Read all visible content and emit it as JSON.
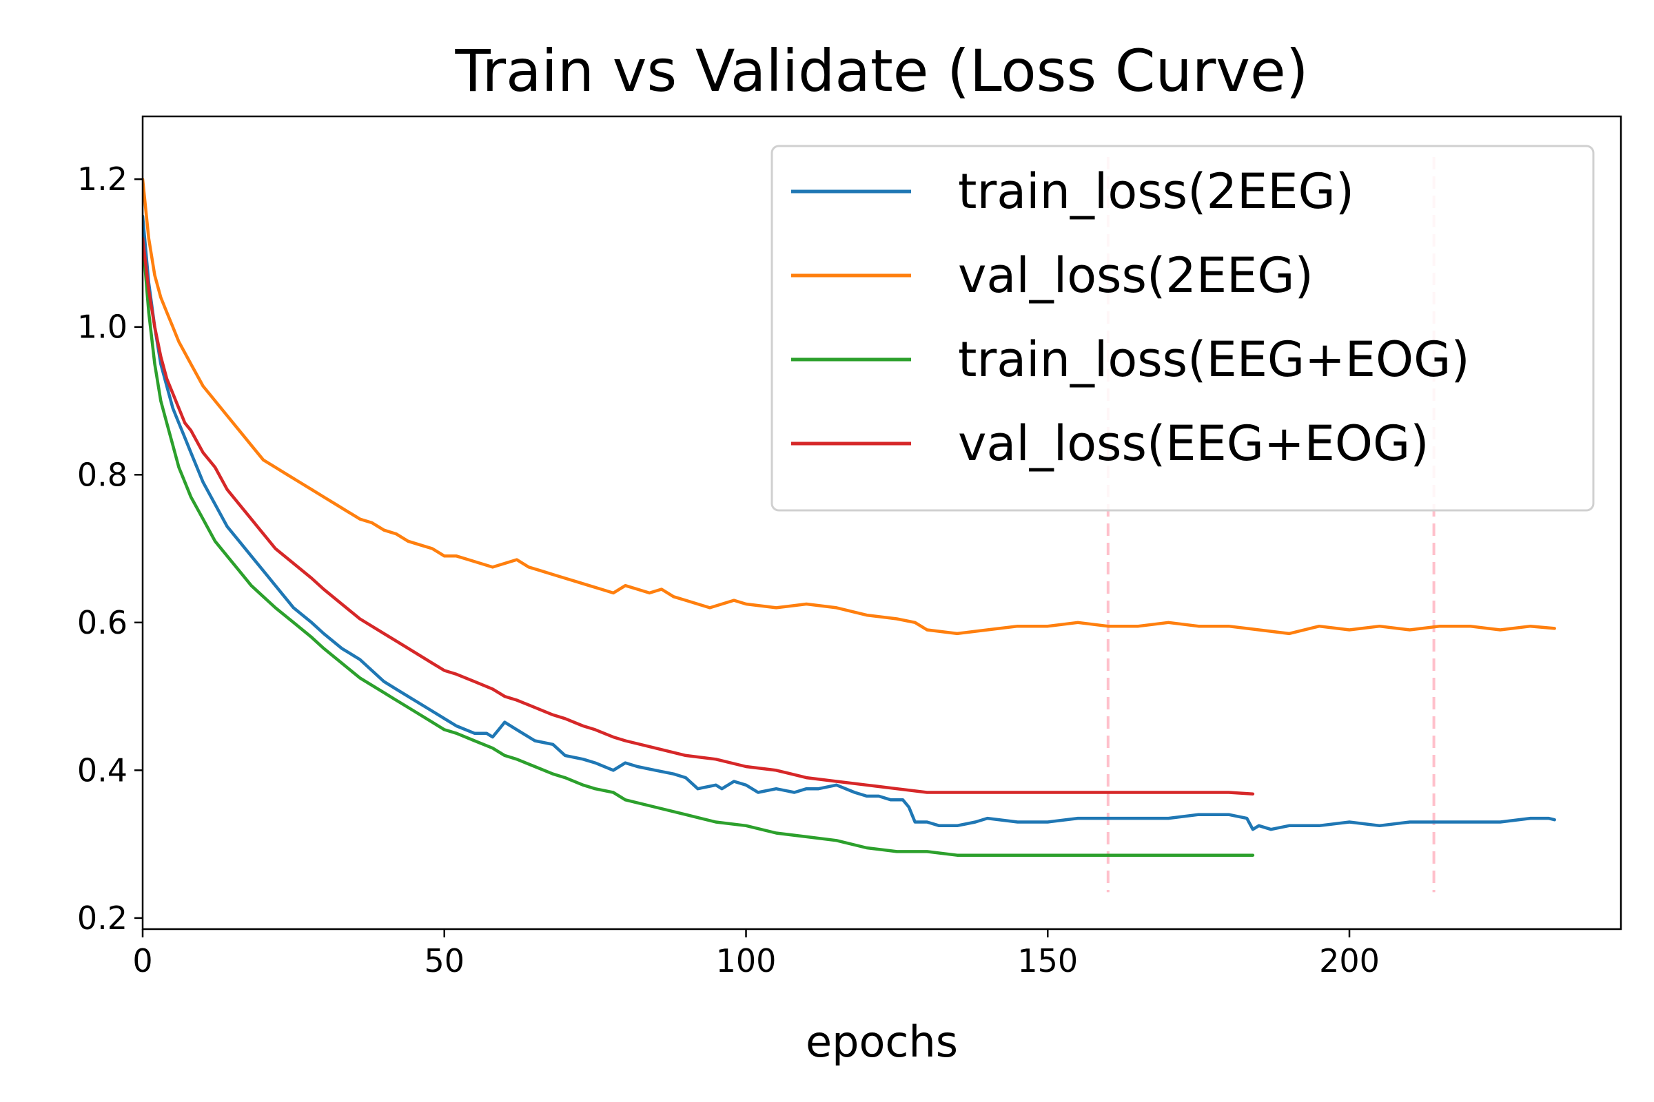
{
  "chart_data": {
    "type": "line",
    "title": "Train vs Validate (Loss Curve)",
    "xlabel": "epochs",
    "ylabel": "",
    "xlim": [
      0,
      245
    ],
    "ylim": [
      0.185,
      1.285
    ],
    "xticks": [
      0,
      50,
      100,
      150,
      200
    ],
    "yticks": [
      0.2,
      0.4,
      0.6,
      0.8,
      1.0,
      1.2
    ],
    "xtick_labels": [
      "0",
      "50",
      "100",
      "150",
      "200"
    ],
    "ytick_labels": [
      "0.2",
      "0.4",
      "0.6",
      "0.8",
      "1.0",
      "1.2"
    ],
    "grid": false,
    "legend_position": "top-right",
    "vlines": [
      {
        "x": 160,
        "color": "#ffc0cb",
        "style": "dashed"
      },
      {
        "x": 214,
        "color": "#ffc0cb",
        "style": "dashed"
      }
    ],
    "series": [
      {
        "name": "train_loss(2EEG)",
        "color": "#1f77b4",
        "x": [
          0,
          1,
          2,
          3,
          4,
          5,
          6,
          7,
          8,
          9,
          10,
          12,
          14,
          16,
          18,
          20,
          22,
          25,
          28,
          30,
          33,
          36,
          40,
          42,
          45,
          48,
          50,
          52,
          55,
          57,
          58,
          59,
          60,
          62,
          65,
          68,
          70,
          73,
          75,
          78,
          80,
          82,
          85,
          88,
          90,
          92,
          95,
          96,
          98,
          100,
          102,
          105,
          108,
          110,
          112,
          115,
          118,
          120,
          122,
          124,
          126,
          127,
          128,
          130,
          132,
          135,
          138,
          140,
          145,
          150,
          155,
          160,
          165,
          170,
          175,
          180,
          183,
          184,
          185,
          187,
          190,
          195,
          200,
          205,
          210,
          215,
          220,
          225,
          230,
          233,
          234
        ],
        "values": [
          1.15,
          1.06,
          1.0,
          0.95,
          0.92,
          0.89,
          0.87,
          0.85,
          0.83,
          0.81,
          0.79,
          0.76,
          0.73,
          0.71,
          0.69,
          0.67,
          0.65,
          0.62,
          0.6,
          0.585,
          0.565,
          0.55,
          0.52,
          0.51,
          0.495,
          0.48,
          0.47,
          0.46,
          0.45,
          0.45,
          0.445,
          0.455,
          0.465,
          0.455,
          0.44,
          0.435,
          0.42,
          0.415,
          0.41,
          0.4,
          0.41,
          0.405,
          0.4,
          0.395,
          0.39,
          0.375,
          0.38,
          0.375,
          0.385,
          0.38,
          0.37,
          0.375,
          0.37,
          0.375,
          0.375,
          0.38,
          0.37,
          0.365,
          0.365,
          0.36,
          0.36,
          0.35,
          0.33,
          0.33,
          0.325,
          0.325,
          0.33,
          0.335,
          0.33,
          0.33,
          0.335,
          0.335,
          0.335,
          0.335,
          0.34,
          0.34,
          0.335,
          0.32,
          0.325,
          0.32,
          0.325,
          0.325,
          0.33,
          0.325,
          0.33,
          0.33,
          0.33,
          0.33,
          0.335,
          0.335,
          0.333
        ]
      },
      {
        "name": "val_loss(2EEG)",
        "color": "#ff7f0e",
        "x": [
          0,
          1,
          2,
          3,
          4,
          5,
          6,
          8,
          10,
          12,
          14,
          16,
          18,
          20,
          22,
          24,
          26,
          28,
          30,
          32,
          34,
          36,
          38,
          40,
          42,
          44,
          46,
          48,
          50,
          52,
          54,
          56,
          58,
          60,
          62,
          64,
          66,
          68,
          70,
          72,
          74,
          76,
          78,
          80,
          82,
          84,
          86,
          88,
          90,
          92,
          94,
          96,
          98,
          100,
          105,
          110,
          115,
          120,
          125,
          128,
          130,
          135,
          140,
          145,
          150,
          155,
          160,
          165,
          170,
          175,
          180,
          185,
          190,
          195,
          200,
          205,
          210,
          215,
          220,
          225,
          230,
          234
        ],
        "values": [
          1.2,
          1.12,
          1.07,
          1.04,
          1.02,
          1.0,
          0.98,
          0.95,
          0.92,
          0.9,
          0.88,
          0.86,
          0.84,
          0.82,
          0.81,
          0.8,
          0.79,
          0.78,
          0.77,
          0.76,
          0.75,
          0.74,
          0.735,
          0.725,
          0.72,
          0.71,
          0.705,
          0.7,
          0.69,
          0.69,
          0.685,
          0.68,
          0.675,
          0.68,
          0.685,
          0.675,
          0.67,
          0.665,
          0.66,
          0.655,
          0.65,
          0.645,
          0.64,
          0.65,
          0.645,
          0.64,
          0.645,
          0.635,
          0.63,
          0.625,
          0.62,
          0.625,
          0.63,
          0.625,
          0.62,
          0.625,
          0.62,
          0.61,
          0.605,
          0.6,
          0.59,
          0.585,
          0.59,
          0.595,
          0.595,
          0.6,
          0.595,
          0.595,
          0.6,
          0.595,
          0.595,
          0.59,
          0.585,
          0.595,
          0.59,
          0.595,
          0.59,
          0.595,
          0.595,
          0.59,
          0.595,
          0.592
        ]
      },
      {
        "name": "train_loss(EEG+EOG)",
        "color": "#2ca02c",
        "x": [
          0,
          1,
          2,
          3,
          4,
          5,
          6,
          7,
          8,
          10,
          12,
          14,
          16,
          18,
          20,
          22,
          25,
          28,
          30,
          33,
          36,
          40,
          42,
          45,
          48,
          50,
          52,
          55,
          58,
          60,
          62,
          65,
          68,
          70,
          73,
          75,
          78,
          80,
          85,
          90,
          95,
          100,
          105,
          110,
          115,
          120,
          125,
          130,
          135,
          140,
          145,
          150,
          155,
          160,
          165,
          170,
          175,
          180,
          184
        ],
        "values": [
          1.12,
          1.02,
          0.95,
          0.9,
          0.87,
          0.84,
          0.81,
          0.79,
          0.77,
          0.74,
          0.71,
          0.69,
          0.67,
          0.65,
          0.635,
          0.62,
          0.6,
          0.58,
          0.565,
          0.545,
          0.525,
          0.505,
          0.495,
          0.48,
          0.465,
          0.455,
          0.45,
          0.44,
          0.43,
          0.42,
          0.415,
          0.405,
          0.395,
          0.39,
          0.38,
          0.375,
          0.37,
          0.36,
          0.35,
          0.34,
          0.33,
          0.325,
          0.315,
          0.31,
          0.305,
          0.295,
          0.29,
          0.29,
          0.285,
          0.285,
          0.285,
          0.285,
          0.285,
          0.285,
          0.285,
          0.285,
          0.285,
          0.285,
          0.285
        ]
      },
      {
        "name": "val_loss(EEG+EOG)",
        "color": "#d62728",
        "x": [
          0,
          1,
          2,
          3,
          4,
          5,
          6,
          7,
          8,
          10,
          12,
          14,
          16,
          18,
          20,
          22,
          25,
          28,
          30,
          33,
          36,
          40,
          42,
          45,
          48,
          50,
          52,
          55,
          58,
          60,
          62,
          65,
          68,
          70,
          73,
          75,
          78,
          80,
          85,
          90,
          95,
          100,
          105,
          110,
          115,
          120,
          125,
          130,
          135,
          140,
          145,
          150,
          155,
          160,
          165,
          170,
          175,
          180,
          184
        ],
        "values": [
          1.12,
          1.05,
          1.0,
          0.96,
          0.93,
          0.91,
          0.89,
          0.87,
          0.86,
          0.83,
          0.81,
          0.78,
          0.76,
          0.74,
          0.72,
          0.7,
          0.68,
          0.66,
          0.645,
          0.625,
          0.605,
          0.585,
          0.575,
          0.56,
          0.545,
          0.535,
          0.53,
          0.52,
          0.51,
          0.5,
          0.495,
          0.485,
          0.475,
          0.47,
          0.46,
          0.455,
          0.445,
          0.44,
          0.43,
          0.42,
          0.415,
          0.405,
          0.4,
          0.39,
          0.385,
          0.38,
          0.375,
          0.37,
          0.37,
          0.37,
          0.37,
          0.37,
          0.37,
          0.37,
          0.37,
          0.37,
          0.37,
          0.37,
          0.368
        ]
      }
    ]
  }
}
